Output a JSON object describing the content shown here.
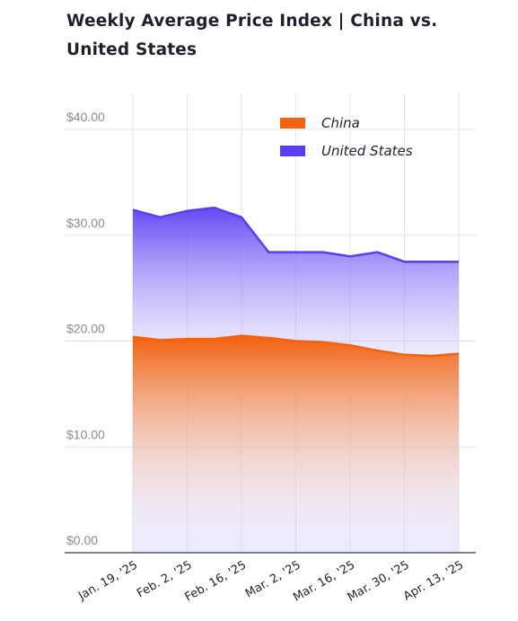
{
  "chart_data": {
    "type": "area",
    "title": "Weekly Average Price Index | China vs. United States",
    "xlabel": "",
    "ylabel": "",
    "ylim": [
      0,
      40
    ],
    "y_ticks": [
      "$0.00",
      "$10.00",
      "$20.00",
      "$30.00",
      "$40.00"
    ],
    "y_tick_values": [
      0,
      10,
      20,
      30,
      40
    ],
    "x": [
      "2025-01-19",
      "2025-01-26",
      "2025-02-02",
      "2025-02-09",
      "2025-02-16",
      "2025-02-23",
      "2025-03-02",
      "2025-03-09",
      "2025-03-16",
      "2025-03-23",
      "2025-03-30",
      "2025-04-06",
      "2025-04-13"
    ],
    "x_tick_labels": [
      {
        "label": "Jan. 19, '25",
        "date": "2025-01-19"
      },
      {
        "label": "Feb. 2, '25",
        "date": "2025-02-02"
      },
      {
        "label": "Feb. 16, '25",
        "date": "2025-02-16"
      },
      {
        "label": "Mar. 2, '25",
        "date": "2025-03-02"
      },
      {
        "label": "Mar. 16, '25",
        "date": "2025-03-16"
      },
      {
        "label": "Mar. 30, '25",
        "date": "2025-03-30"
      },
      {
        "label": "Apr. 13, '25",
        "date": "2025-04-13"
      }
    ],
    "series": [
      {
        "name": "China",
        "color": "#f2620f",
        "values": [
          20.4,
          20.1,
          20.2,
          20.2,
          20.5,
          20.3,
          20.0,
          19.9,
          19.6,
          19.1,
          18.7,
          18.6,
          18.8
        ]
      },
      {
        "name": "United States",
        "color": "#5b3df5",
        "values": [
          32.4,
          31.7,
          32.3,
          32.6,
          31.7,
          28.4,
          28.4,
          28.4,
          28.0,
          28.4,
          27.5,
          27.5,
          27.5
        ]
      }
    ],
    "grid": true,
    "legend": "top-right"
  }
}
